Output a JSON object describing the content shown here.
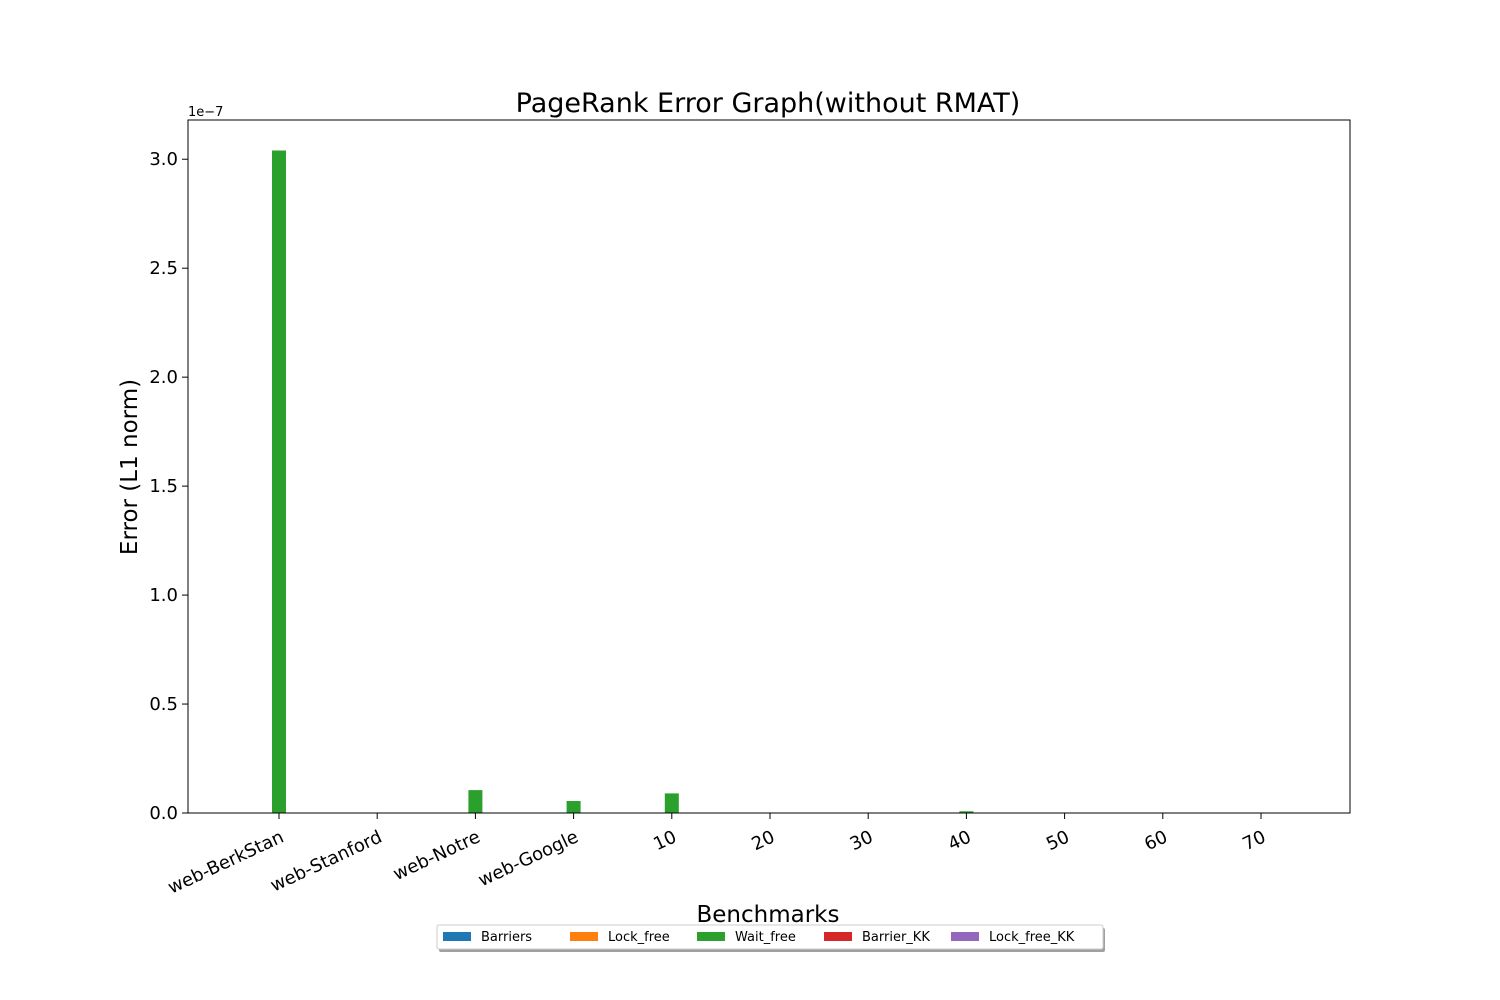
{
  "chart_data": {
    "type": "bar",
    "title": "PageRank Error Graph(without RMAT)",
    "xlabel": "Benchmarks",
    "ylabel": "Error (L1 norm)",
    "y_offset_label": "1e−7",
    "y_scale": 1e-07,
    "ylim": [
      0,
      3.18
    ],
    "yticks": [
      0.0,
      0.5,
      1.0,
      1.5,
      2.0,
      2.5,
      3.0
    ],
    "ytick_labels": [
      "0.0",
      "0.5",
      "1.0",
      "1.5",
      "2.0",
      "2.5",
      "3.0"
    ],
    "categories": [
      "web-BerkStan",
      "web-Stanford",
      "web-Notre",
      "web-Google",
      "10",
      "20",
      "30",
      "40",
      "50",
      "60",
      "70"
    ],
    "series": [
      {
        "name": "Barriers",
        "color": "#1f77b4",
        "values": [
          0,
          0,
          0,
          0,
          0,
          0,
          0,
          0,
          0,
          0,
          0
        ]
      },
      {
        "name": "Lock_free",
        "color": "#ff7f0e",
        "values": [
          0,
          0,
          0,
          0,
          0,
          0,
          0,
          0,
          0,
          0,
          0
        ]
      },
      {
        "name": "Wait_free",
        "color": "#2ca02c",
        "values": [
          3.04,
          0,
          0.105,
          0.055,
          0.09,
          0,
          0,
          0.008,
          0,
          0,
          0
        ]
      },
      {
        "name": "Barrier_KK",
        "color": "#d62728",
        "values": [
          0,
          0,
          0,
          0,
          0,
          0,
          0,
          0,
          0,
          0,
          0
        ]
      },
      {
        "name": "Lock_free_KK",
        "color": "#9467bd",
        "values": [
          0,
          0,
          0,
          0,
          0,
          0,
          0,
          0,
          0,
          0,
          0
        ]
      }
    ],
    "legend_position": "bottom-center",
    "grid": false
  }
}
